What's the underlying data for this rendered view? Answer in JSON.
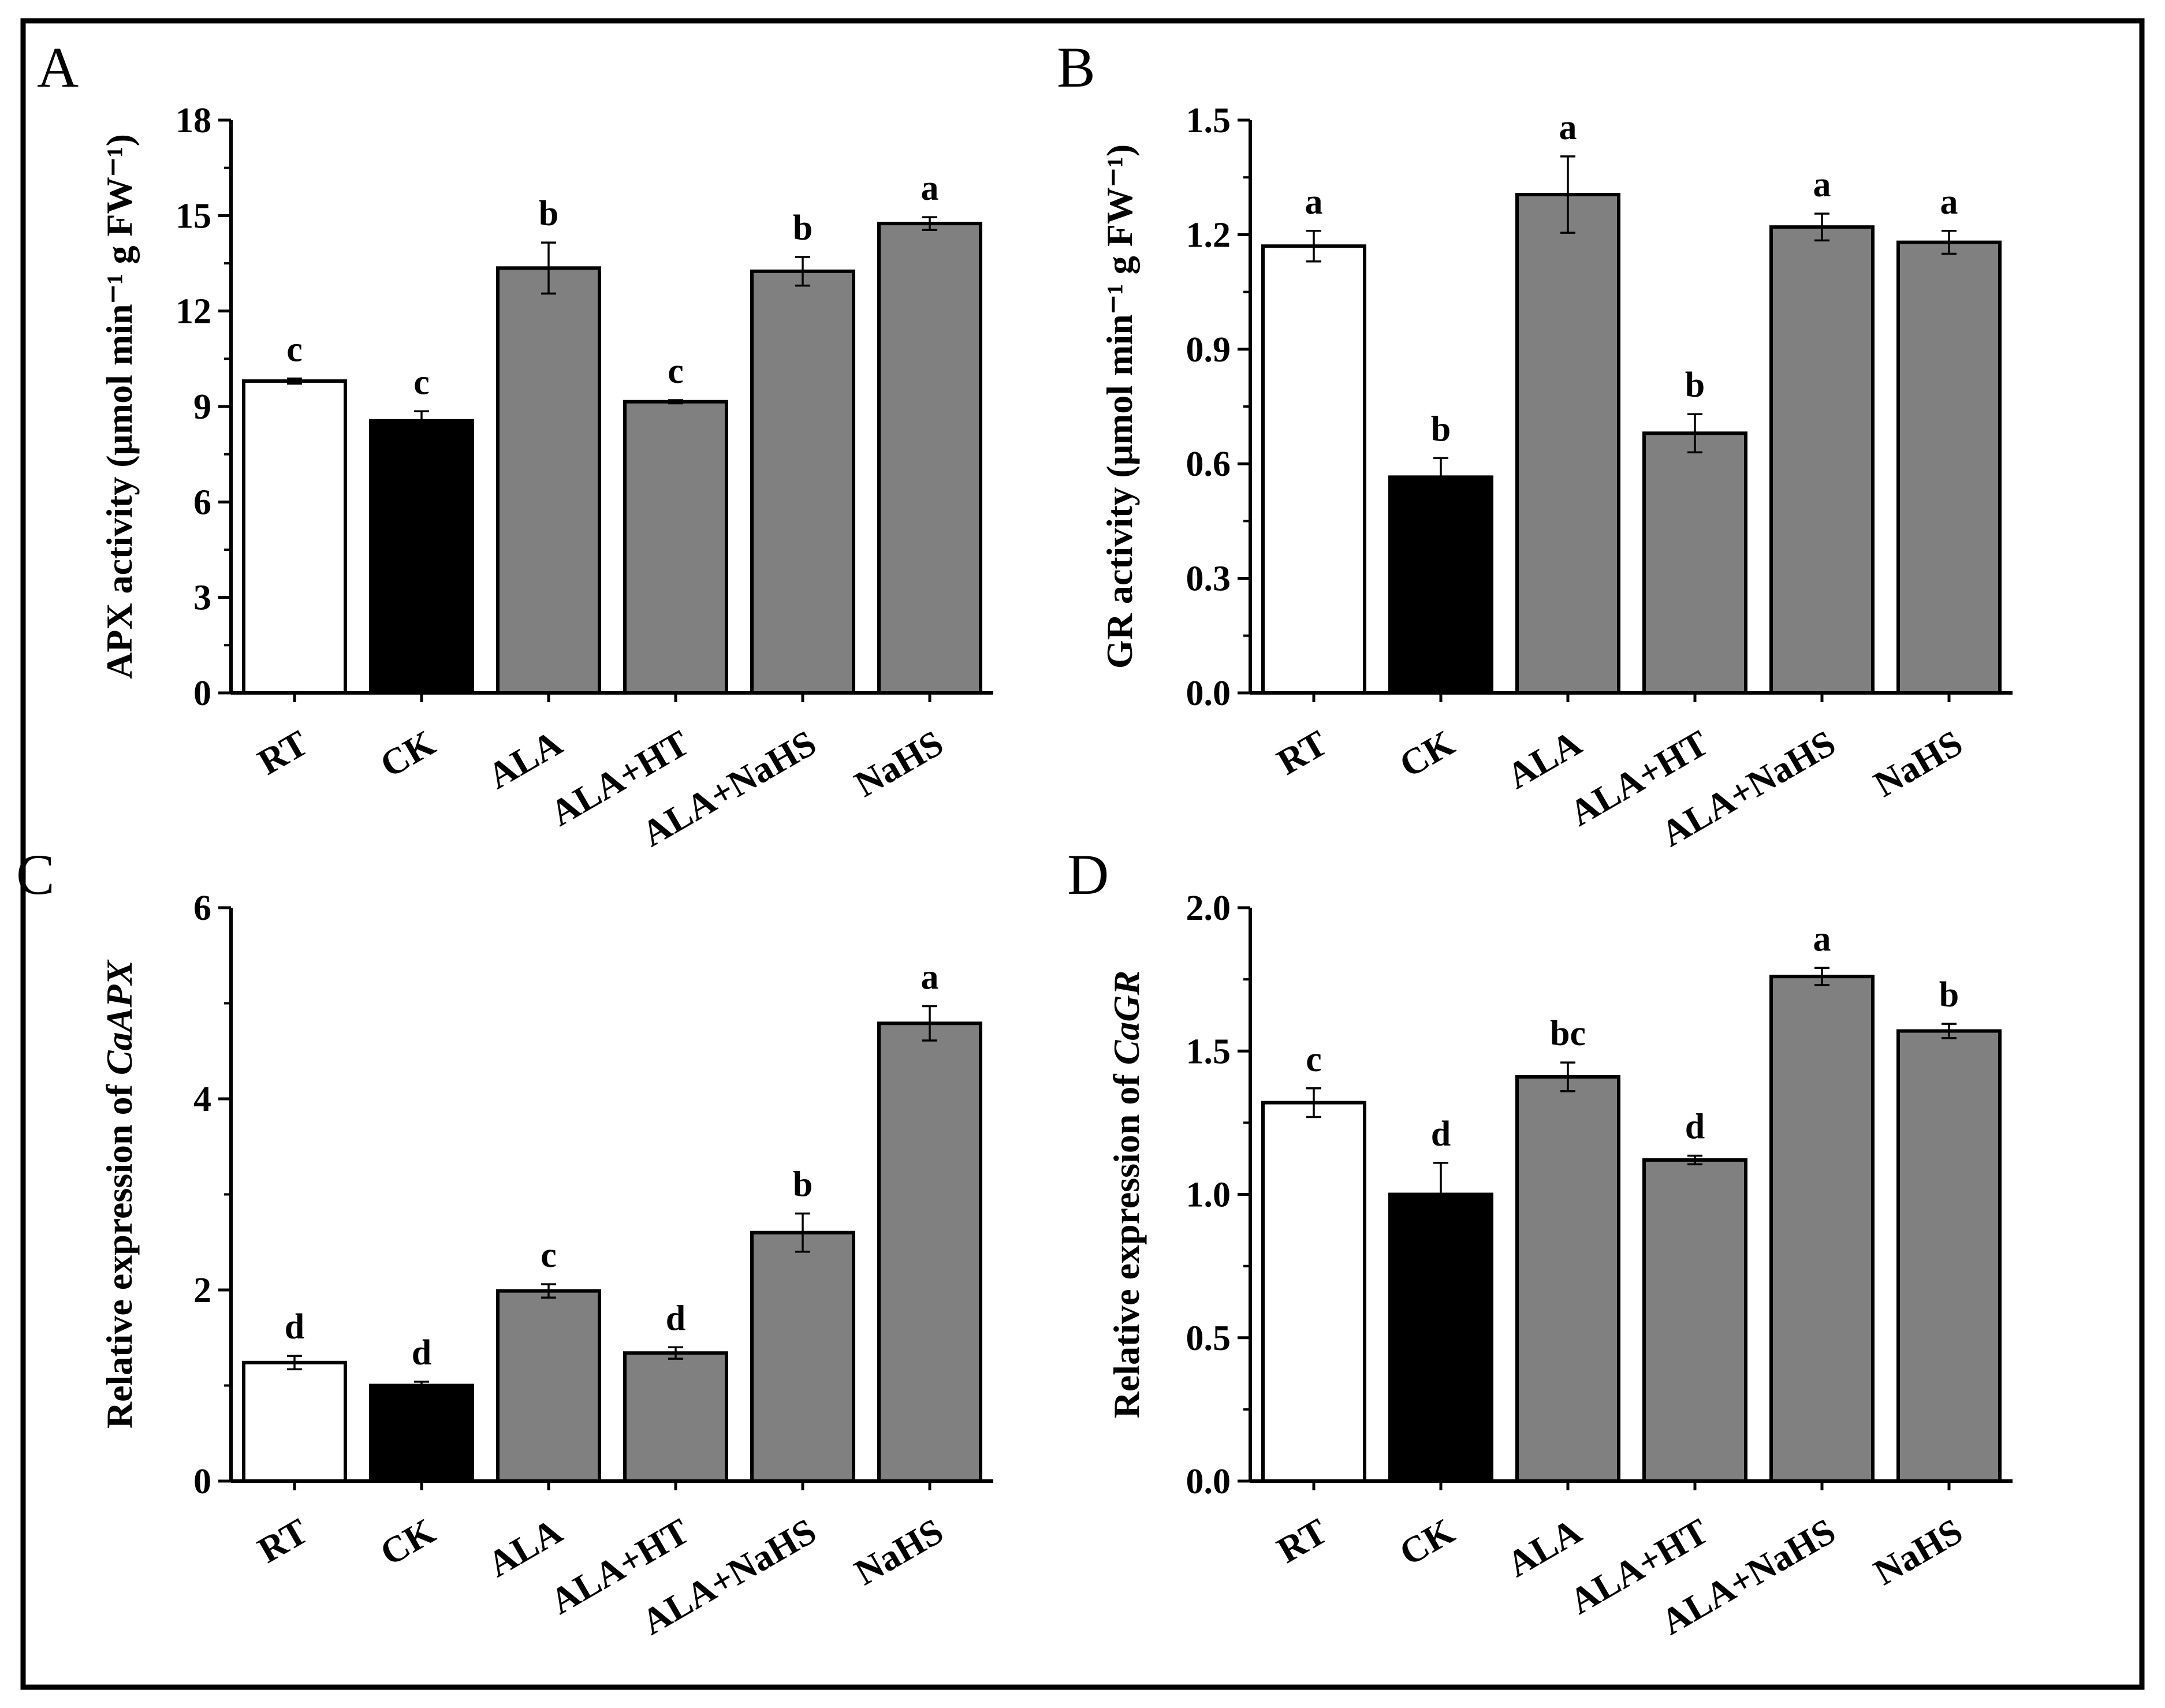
{
  "colors": {
    "RT": "#ffffff",
    "CK": "#000000",
    "treated": "#808080",
    "outline": "#000000",
    "background": "#ffffff"
  },
  "chart_data": [
    {
      "panel": "A",
      "type": "bar",
      "categories": [
        "RT",
        "CK",
        "ALA",
        "ALA+HT",
        "ALA+NaHS",
        "NaHS"
      ],
      "values": [
        9.8,
        8.55,
        13.35,
        9.15,
        13.25,
        14.75
      ],
      "errors": [
        0.08,
        0.3,
        0.8,
        0.05,
        0.45,
        0.2
      ],
      "significance": [
        "c",
        "c",
        "b",
        "c",
        "b",
        "a"
      ],
      "ylabel": "APX activity (μmol min⁻¹ g FW⁻¹)",
      "ylabel_italic_part": "",
      "ylim": [
        0,
        18
      ],
      "yticks": [
        0,
        3,
        6,
        9,
        12,
        15,
        18
      ],
      "ytick_labels": [
        "0",
        "3",
        "6",
        "9",
        "12",
        "15",
        "18"
      ]
    },
    {
      "panel": "B",
      "type": "bar",
      "categories": [
        "RT",
        "CK",
        "ALA",
        "ALA+HT",
        "ALA+NaHS",
        "NaHS"
      ],
      "values": [
        1.17,
        0.565,
        1.305,
        0.68,
        1.22,
        1.18
      ],
      "errors": [
        0.04,
        0.05,
        0.1,
        0.05,
        0.035,
        0.03
      ],
      "significance": [
        "a",
        "b",
        "a",
        "b",
        "a",
        "a"
      ],
      "ylabel": "GR activity (μmol min⁻¹ g FW⁻¹)",
      "ylabel_italic_part": "",
      "ylim": [
        0,
        1.5
      ],
      "yticks": [
        0,
        0.3,
        0.6,
        0.9,
        1.2,
        1.5
      ],
      "ytick_labels": [
        "0.0",
        "0.3",
        "0.6",
        "0.9",
        "1.2",
        "1.5"
      ]
    },
    {
      "panel": "C",
      "type": "bar",
      "categories": [
        "RT",
        "CK",
        "ALA",
        "ALA+HT",
        "ALA+NaHS",
        "NaHS"
      ],
      "values": [
        1.24,
        1.0,
        1.99,
        1.34,
        2.6,
        4.79
      ],
      "errors": [
        0.07,
        0.04,
        0.07,
        0.06,
        0.2,
        0.18
      ],
      "significance": [
        "d",
        "d",
        "c",
        "d",
        "b",
        "a"
      ],
      "ylabel": "Relative expression of ",
      "ylabel_italic_part": "CaAPX",
      "ylim": [
        0,
        6
      ],
      "yticks": [
        0,
        2,
        4,
        6
      ],
      "ytick_labels": [
        "0",
        "2",
        "4",
        "6"
      ]
    },
    {
      "panel": "D",
      "type": "bar",
      "categories": [
        "RT",
        "CK",
        "ALA",
        "ALA+HT",
        "ALA+NaHS",
        "NaHS"
      ],
      "values": [
        1.32,
        1.0,
        1.41,
        1.12,
        1.76,
        1.57
      ],
      "errors": [
        0.05,
        0.11,
        0.05,
        0.015,
        0.03,
        0.025
      ],
      "significance": [
        "c",
        "d",
        "bc",
        "d",
        "a",
        "b"
      ],
      "ylabel": "Relative expression of ",
      "ylabel_italic_part": "CaGR",
      "ylim": [
        0,
        2
      ],
      "yticks": [
        0,
        0.5,
        1,
        1.5,
        2
      ],
      "ytick_labels": [
        "0.0",
        "0.5",
        "1.0",
        "1.5",
        "2.0"
      ]
    }
  ]
}
